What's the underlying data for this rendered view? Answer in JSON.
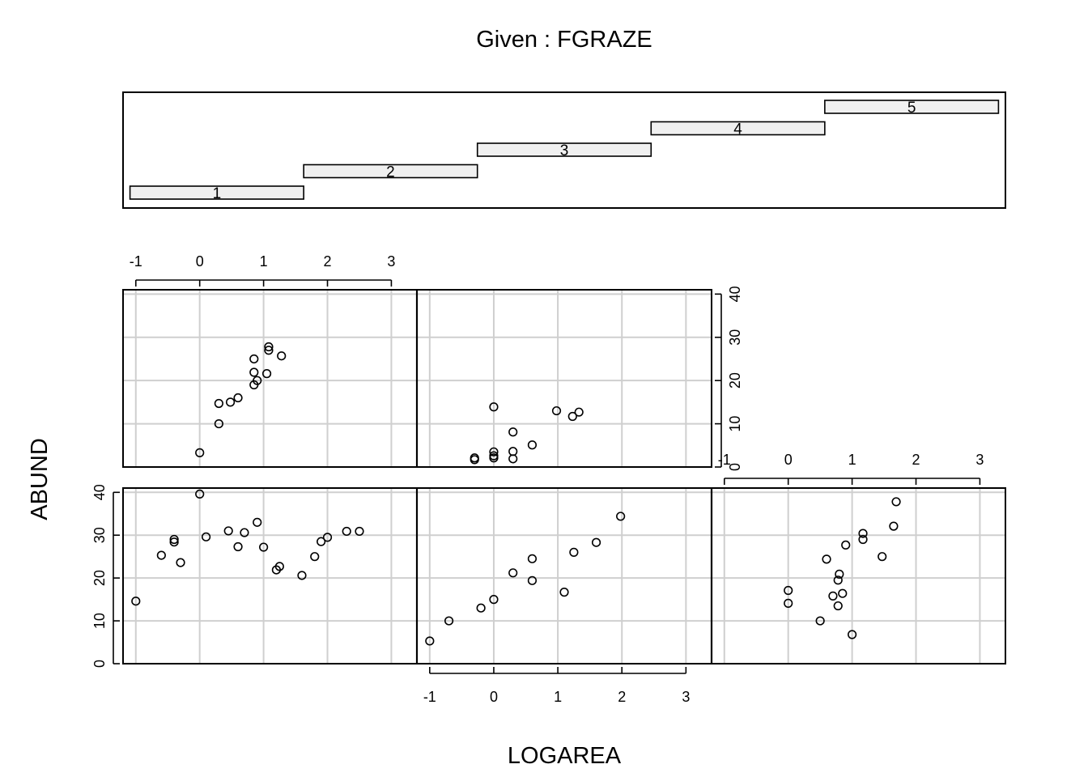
{
  "chart_data": {
    "type": "scatter",
    "title": "Given : FGRAZE",
    "xlabel": "LOGAREA",
    "ylabel": "ABUND",
    "xlim": [
      -1.2,
      3.4
    ],
    "ylim": [
      0,
      41
    ],
    "x_ticks": [
      "-1",
      "0",
      "1",
      "2",
      "3"
    ],
    "y_ticks": [
      "0",
      "10",
      "20",
      "30",
      "40"
    ],
    "grid": true,
    "given_panel": {
      "intervals": [
        {
          "label": "1",
          "from": 0.5,
          "to": 1.5
        },
        {
          "label": "2",
          "from": 1.5,
          "to": 2.5
        },
        {
          "label": "3",
          "from": 2.5,
          "to": 3.5
        },
        {
          "label": "4",
          "from": 3.5,
          "to": 4.5
        },
        {
          "label": "5",
          "from": 4.5,
          "to": 5.5
        }
      ]
    },
    "panels": [
      {
        "given": "1",
        "x": [
          -1.0,
          -0.6,
          -0.4,
          -0.4,
          -0.3,
          0.0,
          0.1,
          0.45,
          0.6,
          0.7,
          0.9,
          1.0,
          1.2,
          1.25,
          1.6,
          1.8,
          1.9,
          2.0,
          2.3,
          2.5
        ],
        "y": [
          14.6,
          25.3,
          29.0,
          28.4,
          23.6,
          39.6,
          29.6,
          31.0,
          27.3,
          30.6,
          33.0,
          27.2,
          21.9,
          22.7,
          20.6,
          25.0,
          28.5,
          29.5,
          30.9,
          30.9
        ]
      },
      {
        "given": "2",
        "x": [
          -1.0,
          -0.7,
          -0.2,
          0.0,
          0.3,
          0.6,
          0.6,
          1.1,
          1.25,
          1.6,
          1.98
        ],
        "y": [
          5.3,
          10.0,
          13.0,
          15.0,
          21.2,
          24.5,
          19.4,
          16.7,
          26.0,
          28.3,
          34.4
        ]
      },
      {
        "given": "3",
        "x": [
          0.0,
          0.0,
          0.5,
          0.6,
          0.7,
          0.78,
          0.78,
          0.8,
          0.85,
          0.9,
          1.0,
          1.17,
          1.17,
          1.47,
          1.65,
          1.69
        ],
        "y": [
          17.1,
          14.1,
          10.0,
          24.4,
          15.8,
          19.5,
          13.5,
          20.9,
          16.4,
          27.7,
          6.8,
          30.4,
          29.0,
          25.0,
          32.1,
          37.8
        ]
      },
      {
        "given": "4",
        "x": [
          0.0,
          0.3,
          0.3,
          0.48,
          0.6,
          0.85,
          0.85,
          0.9,
          0.85,
          1.05,
          1.08,
          1.08,
          1.28
        ],
        "y": [
          3.3,
          10.0,
          14.7,
          15.0,
          16.0,
          25.0,
          21.9,
          20.0,
          19.0,
          21.6,
          27.8,
          27.0,
          25.7
        ]
      },
      {
        "given": "5",
        "x": [
          -0.3,
          -0.3,
          0.0,
          0.0,
          0.0,
          0.3,
          0.3,
          0.3,
          0.6,
          0.98,
          1.23,
          1.33,
          0.0
        ],
        "y": [
          1.7,
          2.1,
          3.5,
          2.6,
          2.1,
          3.6,
          1.9,
          8.1,
          5.1,
          13.0,
          11.7,
          12.7,
          13.9
        ]
      }
    ]
  }
}
